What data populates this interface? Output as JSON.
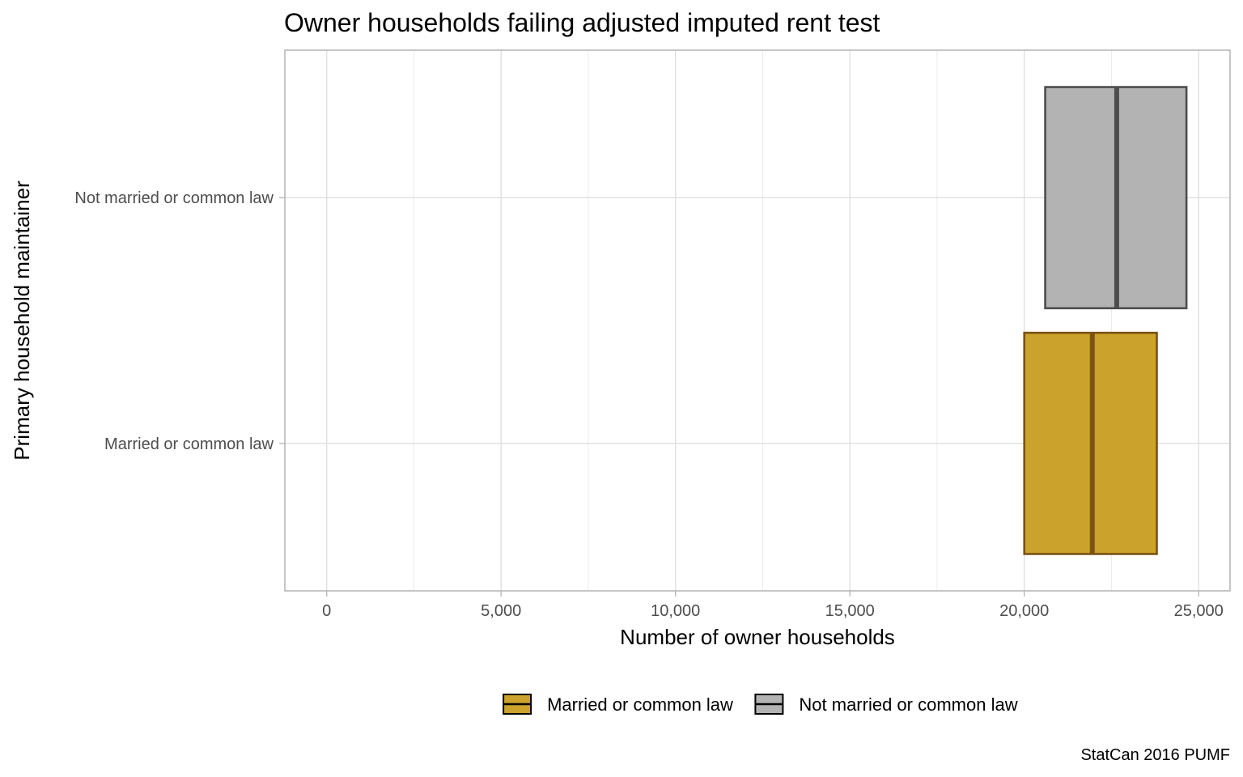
{
  "chart_data": {
    "type": "bar",
    "orientation": "horizontal",
    "title": "Owner households failing adjusted imputed rent test",
    "xlabel": "Number of owner households",
    "ylabel": "Primary household maintainer",
    "caption": "StatCan 2016 PUMF",
    "xlim": [
      -1200,
      25900
    ],
    "x_ticks": [
      0,
      5000,
      10000,
      15000,
      20000,
      25000
    ],
    "x_tick_labels": [
      "0",
      "5,000",
      "10,000",
      "15,000",
      "20,000",
      "25,000"
    ],
    "categories": [
      "Married or common law",
      "Not married or common law"
    ],
    "grid": true,
    "legend_position": "bottom",
    "series": [
      {
        "name": "Married or common law",
        "low": 20000,
        "estimate": 21950,
        "high": 23800,
        "fill": "#cba32c",
        "stroke": "#7b5213"
      },
      {
        "name": "Not married or common law",
        "low": 20600,
        "estimate": 22650,
        "high": 24650,
        "fill": "#b3b3b3",
        "stroke": "#4d4d4d"
      }
    ]
  }
}
